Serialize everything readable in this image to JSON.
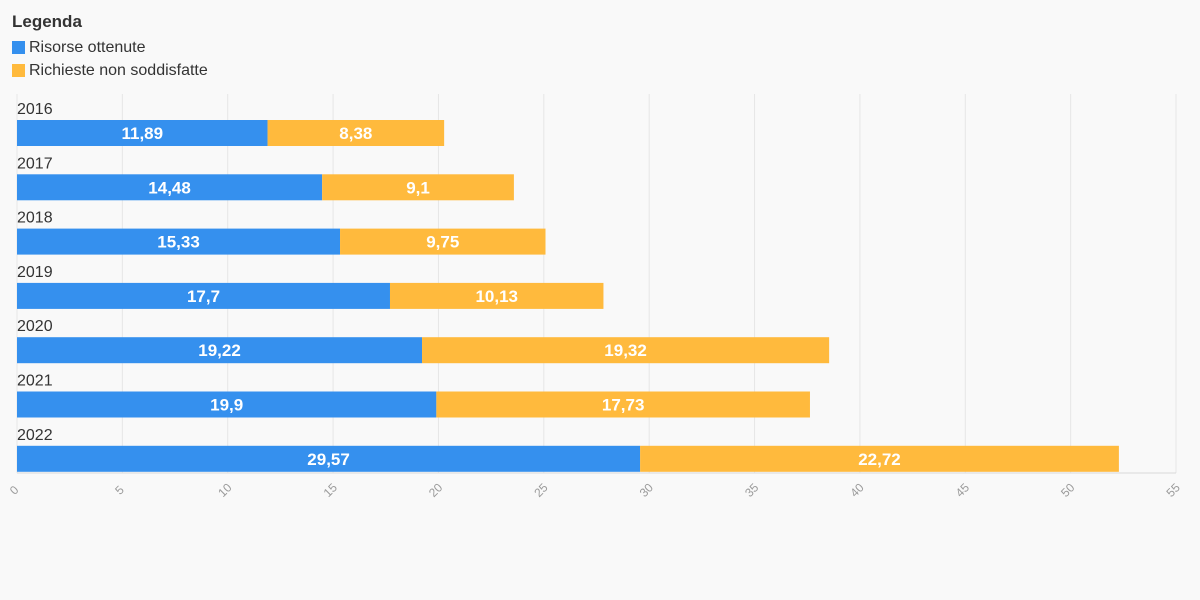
{
  "legend": {
    "title": "Legenda",
    "items": [
      {
        "label": "Risorse ottenute",
        "color": "#3590ee"
      },
      {
        "label": "Richieste non soddisfatte",
        "color": "#ffba3d"
      }
    ]
  },
  "chart_data": {
    "type": "bar",
    "orientation": "horizontal",
    "stacked": true,
    "categories": [
      "2016",
      "2017",
      "2018",
      "2019",
      "2020",
      "2021",
      "2022"
    ],
    "series": [
      {
        "name": "Risorse ottenute",
        "color": "#3590ee",
        "values": [
          11.89,
          14.48,
          15.33,
          17.7,
          19.22,
          19.9,
          29.57
        ],
        "labels": [
          "11,89",
          "14,48",
          "15,33",
          "17,7",
          "19,22",
          "19,9",
          "29,57"
        ]
      },
      {
        "name": "Richieste non soddisfatte",
        "color": "#ffba3d",
        "values": [
          8.38,
          9.1,
          9.75,
          10.13,
          19.32,
          17.73,
          22.72
        ],
        "labels": [
          "8,38",
          "9,1",
          "9,75",
          "10,13",
          "19,32",
          "17,73",
          "22,72"
        ]
      }
    ],
    "xlim": [
      0,
      55
    ],
    "xticks": [
      "0",
      "5",
      "10",
      "15",
      "20",
      "25",
      "30",
      "35",
      "40",
      "45",
      "50",
      "55"
    ],
    "grid": true,
    "legend_position": "top-left"
  }
}
